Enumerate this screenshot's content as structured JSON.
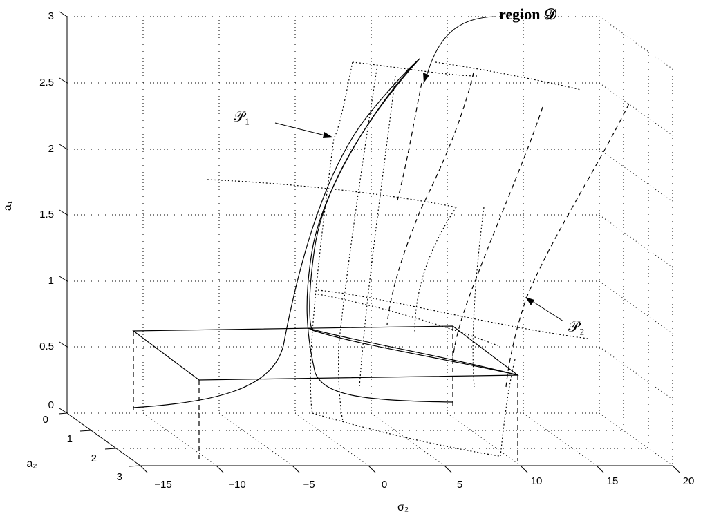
{
  "chart_data": {
    "type": "line3d",
    "title": "",
    "axes": {
      "x": {
        "label": "σ₂",
        "ticks": [
          "−15",
          "−10",
          "−5",
          "0",
          "5",
          "10",
          "15",
          "20"
        ],
        "range": [
          -15,
          20
        ]
      },
      "y": {
        "label": "a₂",
        "ticks": [
          "0",
          "1",
          "2",
          "3"
        ],
        "range": [
          0,
          3
        ]
      },
      "z": {
        "label": "a₁",
        "ticks": [
          "0",
          "0.5",
          "1",
          "1.5",
          "2",
          "2.5",
          "3"
        ],
        "range": [
          0,
          3
        ]
      }
    },
    "grid": true,
    "annotations": [
      {
        "text": "𝒫₁",
        "target": "dotted boundary surface curve"
      },
      {
        "text": "𝒫₂",
        "target": "dashed boundary surface curve"
      },
      {
        "text": "region 𝒟",
        "bold_part": "region",
        "target": "tip of solid response curve"
      }
    ],
    "series": [
      {
        "style": "solid",
        "description": "frequency-response curve (upper/lower branches)"
      },
      {
        "style": "solid",
        "description": "plane a₁ = 0.5"
      },
      {
        "style": "dashed",
        "description": "projection lines to a₁ = 0"
      },
      {
        "style": "dotted",
        "description": "boundary 𝒫₁"
      },
      {
        "style": "dashed",
        "description": "boundary 𝒫₂"
      }
    ]
  }
}
